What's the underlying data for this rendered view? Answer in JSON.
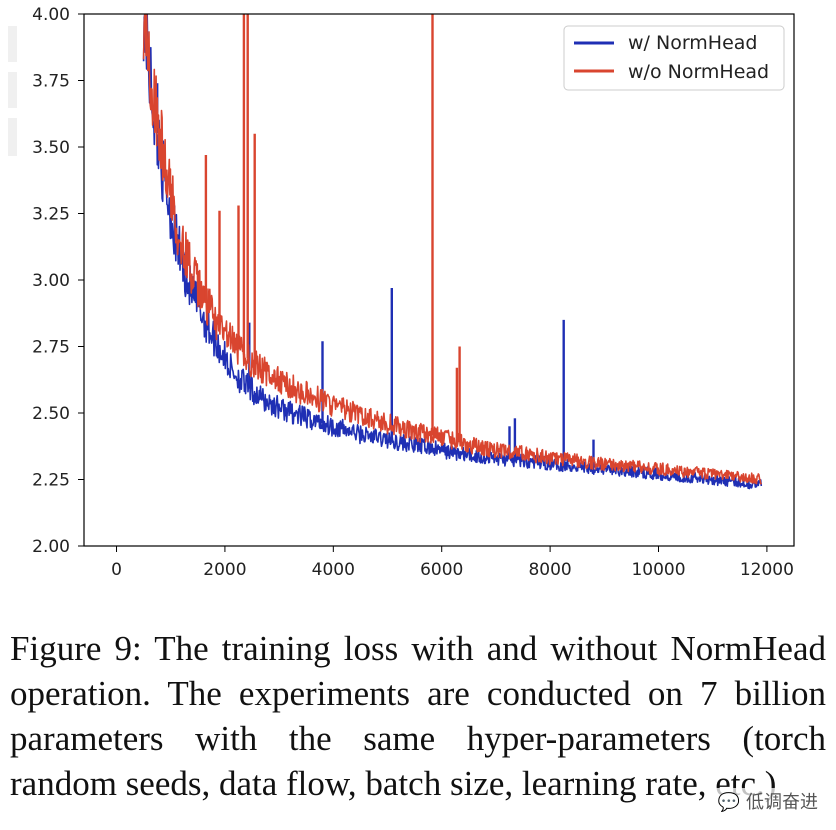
{
  "chart_data": {
    "type": "line",
    "title": "",
    "xlabel": "",
    "ylabel": "",
    "xlim": [
      -600,
      12500
    ],
    "ylim": [
      2.0,
      4.0
    ],
    "x_ticks": [
      0,
      2000,
      4000,
      6000,
      8000,
      10000,
      12000
    ],
    "x_tick_labels": [
      "0",
      "2000",
      "4000",
      "6000",
      "8000",
      "10000",
      "12000"
    ],
    "y_ticks": [
      2.0,
      2.25,
      2.5,
      2.75,
      3.0,
      3.25,
      3.5,
      3.75,
      4.0
    ],
    "y_tick_labels": [
      "2.00",
      "2.25",
      "2.50",
      "2.75",
      "3.00",
      "3.25",
      "3.50",
      "3.75",
      "4.00"
    ],
    "grid": false,
    "legend_position": "top-right",
    "series": [
      {
        "name": "w/ NormHead",
        "color": "#1f2fb4",
        "x": [
          500,
          700,
          900,
          1100,
          1300,
          1500,
          1800,
          2100,
          2400,
          2700,
          3000,
          3500,
          4000,
          4500,
          5000,
          5500,
          6000,
          6500,
          7000,
          7500,
          8000,
          8500,
          9000,
          9500,
          10000,
          10500,
          11000,
          11500,
          11900
        ],
        "values": [
          4.0,
          3.62,
          3.35,
          3.15,
          3.0,
          2.9,
          2.78,
          2.67,
          2.6,
          2.55,
          2.52,
          2.48,
          2.45,
          2.42,
          2.4,
          2.38,
          2.36,
          2.34,
          2.33,
          2.32,
          2.31,
          2.3,
          2.29,
          2.28,
          2.27,
          2.26,
          2.25,
          2.24,
          2.23
        ],
        "spikes": [
          {
            "x": 750,
            "y": 3.74
          },
          {
            "x": 2450,
            "y": 2.84
          },
          {
            "x": 3800,
            "y": 2.77
          },
          {
            "x": 5080,
            "y": 2.97
          },
          {
            "x": 7250,
            "y": 2.45
          },
          {
            "x": 7350,
            "y": 2.48
          },
          {
            "x": 8250,
            "y": 2.85
          },
          {
            "x": 8800,
            "y": 2.4
          }
        ]
      },
      {
        "name": "w/o NormHead",
        "color": "#d9452f",
        "x": [
          500,
          700,
          900,
          1100,
          1300,
          1500,
          1800,
          2100,
          2400,
          2700,
          3000,
          3500,
          4000,
          4500,
          5000,
          5500,
          6000,
          6500,
          7000,
          7500,
          8000,
          8500,
          9000,
          9500,
          10000,
          10500,
          11000,
          11500,
          11900
        ],
        "values": [
          4.0,
          3.68,
          3.42,
          3.22,
          3.08,
          2.97,
          2.86,
          2.77,
          2.71,
          2.66,
          2.62,
          2.57,
          2.53,
          2.49,
          2.46,
          2.43,
          2.41,
          2.38,
          2.36,
          2.35,
          2.33,
          2.32,
          2.31,
          2.3,
          2.29,
          2.28,
          2.27,
          2.26,
          2.25
        ],
        "spikes": [
          {
            "x": 1650,
            "y": 3.47
          },
          {
            "x": 1900,
            "y": 3.26
          },
          {
            "x": 2250,
            "y": 3.28
          },
          {
            "x": 2350,
            "y": 4.0
          },
          {
            "x": 2420,
            "y": 4.0
          },
          {
            "x": 2550,
            "y": 3.55
          },
          {
            "x": 5830,
            "y": 4.0
          },
          {
            "x": 6330,
            "y": 2.75
          },
          {
            "x": 6280,
            "y": 2.67
          }
        ]
      }
    ]
  },
  "caption": "Figure 9: The training loss with and without NormHead operation. The experiments are conducted on 7 billion parameters with the same hyper-parameters (torch random seeds, data flow, batch size, learning rate, etc.)",
  "watermark": "💬 低调奋进"
}
